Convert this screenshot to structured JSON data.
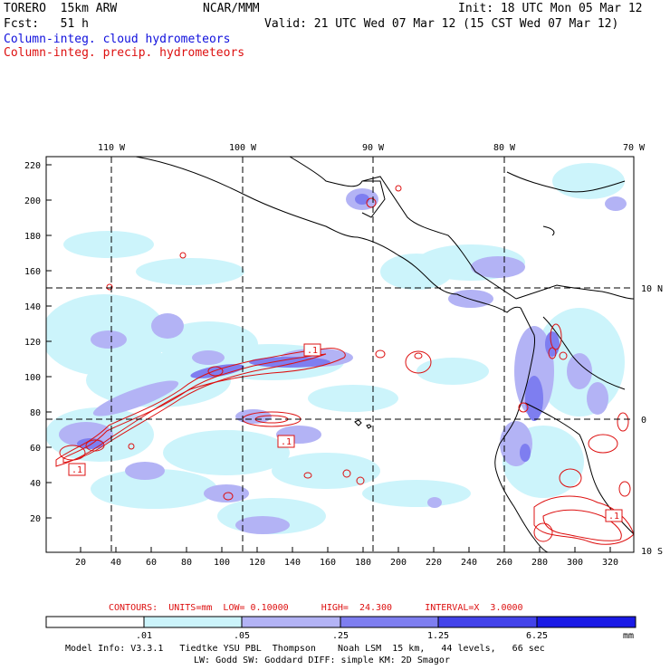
{
  "header": {
    "model": "TORERO  15km ARW",
    "org": "NCAR/MMM",
    "init": "Init: 18 UTC Mon 05 Mar 12",
    "fcst": "Fcst:   51 h",
    "valid": "Valid: 21 UTC Wed 07 Mar 12 (15 CST Wed 07 Mar 12)",
    "field_cloud": "Column-integ. cloud hydrometeors",
    "field_precip": "Column-integ. precip. hydrometeors"
  },
  "map": {
    "top_lon_labels": [
      "110 W",
      "100 W",
      "90 W",
      "80 W",
      "70 W"
    ],
    "right_lat_labels": [
      "10 N",
      "0",
      "10 S"
    ],
    "y_grid_labels": [
      "220",
      "200",
      "180",
      "160",
      "140",
      "120",
      "100",
      "80",
      "60",
      "40",
      "20"
    ],
    "x_grid_labels": [
      "20",
      "40",
      "60",
      "80",
      "100",
      "120",
      "140",
      "160",
      "180",
      "200",
      "220",
      "240",
      "260",
      "280",
      "300",
      "320"
    ],
    "contour_labels": [
      ".1",
      ".1",
      ".1",
      ".1"
    ]
  },
  "footer": {
    "contours": "CONTOURS:  UNITS=mm  LOW= 0.10000      HIGH=  24.300      INTERVAL=X  3.0000",
    "colorbar_labels": [
      ".01",
      ".05",
      ".25",
      "1.25",
      "6.25"
    ],
    "colorbar_unit": "mm",
    "colorbar_colors": [
      "#ccf4fb",
      "#b3b3f5",
      "#7e7ef0",
      "#4343ea",
      "#1a1ae6"
    ],
    "model_info_1": "Model Info: V3.3.1   Tiedtke YSU PBL  Thompson    Noah LSM  15 km,   44 levels,   66 sec",
    "model_info_2": "LW: Godd SW: Goddard DIFF: simple KM: 2D Smagor"
  }
}
